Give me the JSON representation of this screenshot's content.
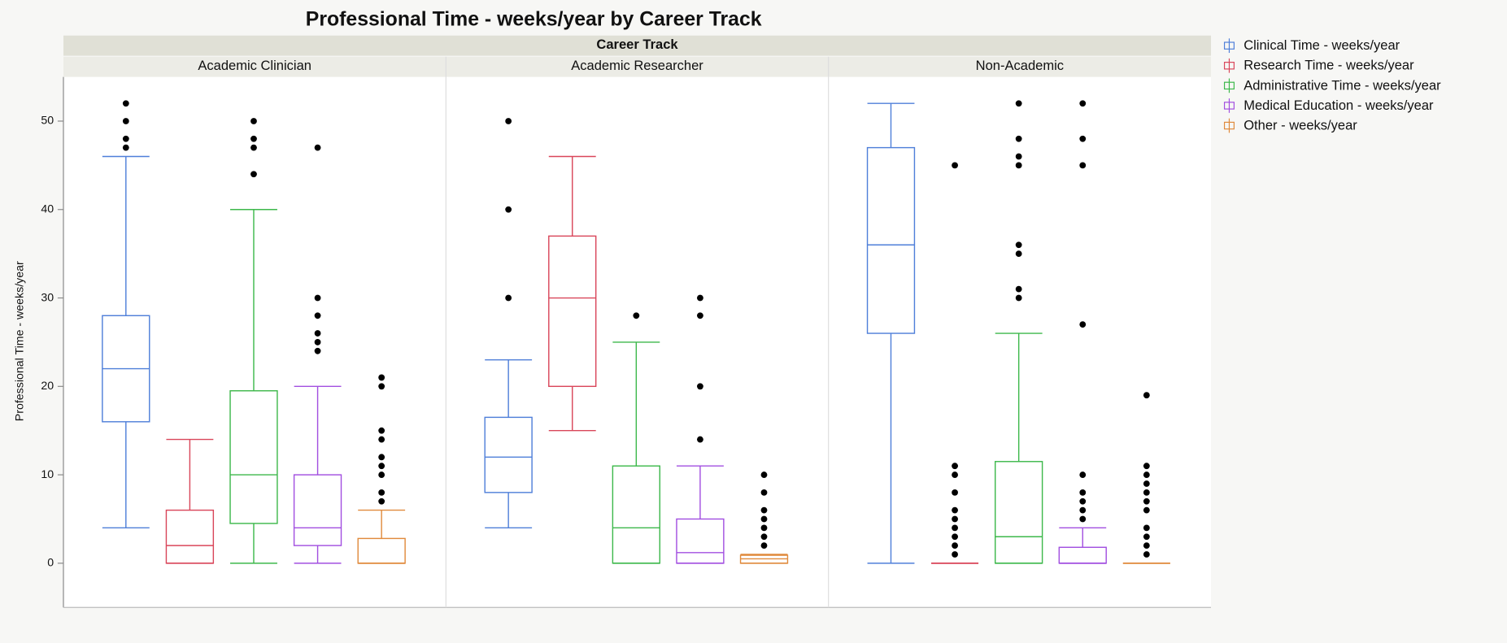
{
  "chart_data": {
    "type": "box",
    "title": "Professional Time - weeks/year by Career Track",
    "facet_label": "Career Track",
    "y_label": "Professional Time - weeks/year",
    "ylim": [
      -5,
      55
    ],
    "yticks": [
      0,
      10,
      20,
      30,
      40,
      50
    ],
    "series": [
      {
        "name": "Clinical Time - weeks/year",
        "color": "#4f7fd9"
      },
      {
        "name": "Research Time - weeks/year",
        "color": "#d9465a"
      },
      {
        "name": "Administrative Time - weeks/year",
        "color": "#3db84b"
      },
      {
        "name": "Medical Education - weeks/year",
        "color": "#a24fe0"
      },
      {
        "name": "Other - weeks/year",
        "color": "#e08a3c"
      }
    ],
    "panels": [
      {
        "name": "Academic Clinician",
        "boxes": [
          {
            "low": 4,
            "q1": 16,
            "median": 22,
            "q3": 28,
            "high": 46,
            "outliers": [
              47,
              48,
              50,
              52
            ]
          },
          {
            "low": 0,
            "q1": 0,
            "median": 2,
            "q3": 6,
            "high": 14,
            "outliers": []
          },
          {
            "low": 0,
            "q1": 4.5,
            "median": 10,
            "q3": 19.5,
            "high": 40,
            "outliers": [
              44,
              47,
              48,
              50
            ]
          },
          {
            "low": 0,
            "q1": 2,
            "median": 4,
            "q3": 10,
            "high": 20,
            "outliers": [
              24,
              25,
              26,
              28,
              30,
              47
            ]
          },
          {
            "low": 0,
            "q1": 0,
            "median": 0,
            "q3": 2.8,
            "high": 6,
            "outliers": [
              7,
              8,
              10,
              11,
              12,
              14,
              15,
              20,
              21
            ]
          }
        ]
      },
      {
        "name": "Academic Researcher",
        "boxes": [
          {
            "low": 4,
            "q1": 8,
            "median": 12,
            "q3": 16.5,
            "high": 23,
            "outliers": [
              30,
              40,
              50
            ]
          },
          {
            "low": 15,
            "q1": 20,
            "median": 30,
            "q3": 37,
            "high": 46,
            "outliers": []
          },
          {
            "low": 0,
            "q1": 0,
            "median": 4,
            "q3": 11,
            "high": 25,
            "outliers": [
              28
            ]
          },
          {
            "low": 0,
            "q1": 0,
            "median": 1.2,
            "q3": 5,
            "high": 11,
            "outliers": [
              14,
              20,
              28,
              30
            ]
          },
          {
            "low": 0,
            "q1": 0,
            "median": 0.5,
            "q3": 0.9,
            "high": 1,
            "outliers": [
              2,
              3,
              4,
              5,
              6,
              8,
              10
            ]
          }
        ]
      },
      {
        "name": "Non-Academic",
        "boxes": [
          {
            "low": 0,
            "q1": 26,
            "median": 36,
            "q3": 47,
            "high": 52,
            "outliers": []
          },
          {
            "low": 0,
            "q1": 0,
            "median": 0,
            "q3": 0,
            "high": 0,
            "outliers": [
              1,
              2,
              3,
              4,
              5,
              6,
              8,
              10,
              11,
              45
            ]
          },
          {
            "low": 0,
            "q1": 0,
            "median": 3,
            "q3": 11.5,
            "high": 26,
            "outliers": [
              30,
              31,
              35,
              36,
              45,
              46,
              48,
              52
            ]
          },
          {
            "low": 0,
            "q1": 0,
            "median": 0,
            "q3": 1.8,
            "high": 4,
            "outliers": [
              5,
              6,
              7,
              8,
              10,
              27,
              45,
              48,
              52
            ]
          },
          {
            "low": 0,
            "q1": 0,
            "median": 0,
            "q3": 0,
            "high": 0,
            "outliers": [
              1,
              2,
              3,
              4,
              6,
              7,
              8,
              9,
              10,
              11,
              19
            ]
          }
        ]
      }
    ]
  }
}
